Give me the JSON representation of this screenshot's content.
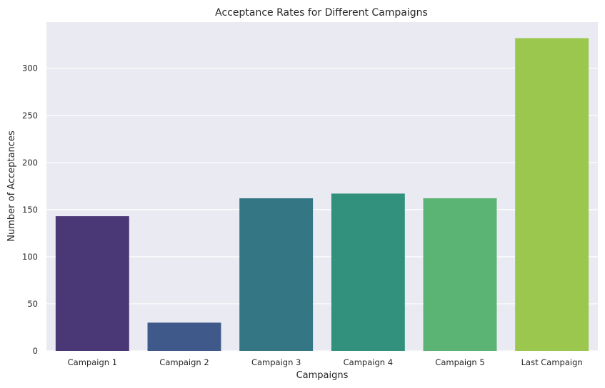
{
  "chart_data": {
    "type": "bar",
    "title": "Acceptance Rates for Different Campaigns",
    "xlabel": "Campaigns",
    "ylabel": "Number of Acceptances",
    "categories": [
      "Campaign 1",
      "Campaign 2",
      "Campaign 3",
      "Campaign 4",
      "Campaign 5",
      "Last Campaign"
    ],
    "values": [
      143,
      30,
      162,
      167,
      162,
      332
    ],
    "ylim": [
      0,
      349
    ],
    "yticks": [
      0,
      50,
      100,
      150,
      200,
      250,
      300
    ],
    "grid": true,
    "legend": "none",
    "colors": [
      "#4a3876",
      "#3f5a8a",
      "#357685",
      "#31917d",
      "#5bb374",
      "#9bc74e"
    ],
    "plot_background": "#eaeaf2",
    "grid_color": "#ffffff"
  }
}
